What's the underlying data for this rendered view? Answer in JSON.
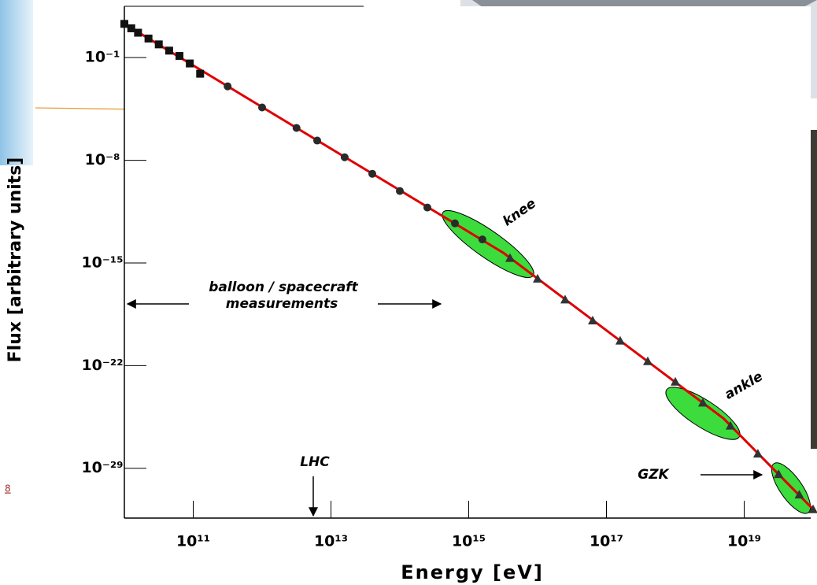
{
  "chart_data": {
    "type": "line",
    "xlabel": "Energy  [eV]",
    "ylabel": "Flux  [arbitrary units]",
    "xscale": "log",
    "yscale": "log",
    "xlim": [
      10000000000.0,
      1e+20
    ],
    "ylim": [
      316,
      4e-33
    ],
    "xticks": [
      {
        "value": 100000000000.0,
        "label": "10¹¹"
      },
      {
        "value": 10000000000000.0,
        "label": "10¹³"
      },
      {
        "value": 1000000000000000.0,
        "label": "10¹⁵"
      },
      {
        "value": 1e+17,
        "label": "10¹⁷"
      },
      {
        "value": 1e+19,
        "label": "10¹⁹"
      }
    ],
    "yticks": [
      {
        "value": 0.1,
        "label": "10⁻¹"
      },
      {
        "value": 1e-08,
        "label": "10⁻⁸"
      },
      {
        "value": 1e-15,
        "label": "10⁻¹⁵"
      },
      {
        "value": 1e-22,
        "label": "10⁻²²"
      },
      {
        "value": 1e-29,
        "label": "10⁻²⁹"
      }
    ],
    "series": [
      {
        "color": "#e00000",
        "marker": "none",
        "x": [
          10000000000.0,
          3160000000000000.0,
          5e+18,
          1e+20
        ],
        "values": [
          20,
          5e-15,
          2.5e-26,
          1.6e-32
        ]
      },
      {
        "color": "#111111",
        "marker": "square",
        "x": [
          10000000000.0,
          12600000000.0,
          15800000000.0,
          22400000000.0,
          31600000000.0,
          44700000000.0,
          63100000000.0,
          89100000000.0,
          126000000000.0
        ],
        "values": [
          20,
          10,
          5,
          2,
          0.8,
          0.3,
          0.13,
          0.04,
          0.008
        ]
      },
      {
        "color": "#2a2a2a",
        "marker": "circle",
        "x": [
          316000000000.0,
          1000000000000.0,
          3160000000000.0,
          6310000000000.0,
          15800000000000.0,
          39800000000000.0,
          100000000000000.0,
          251000000000000.0,
          631000000000000.0,
          1580000000000000.0
        ],
        "values": [
          0.0011,
          4e-05,
          1.6e-06,
          2.2e-07,
          1.6e-08,
          1.2e-09,
          8e-11,
          6e-12,
          5e-13,
          4e-14
        ]
      },
      {
        "color": "#333333",
        "marker": "triangle",
        "x": [
          3980000000000000.0,
          1e+16,
          2.51e+16,
          6.31e+16,
          1.58e+17,
          3.98e+17,
          1e+18,
          2.51e+18,
          6.31e+18,
          1.58e+19,
          3.16e+19,
          6.31e+19,
          1e+20
        ],
        "values": [
          2.2e-15,
          8.5e-17,
          3.2e-18,
          1.2e-19,
          5e-21,
          2e-22,
          8e-24,
          3e-25,
          8e-27,
          1e-28,
          4e-30,
          1.6e-31,
          1.6e-32
        ]
      }
    ],
    "annotations": [
      "knee",
      "ankle",
      "GZK",
      "LHC",
      "balloon / spacecraft",
      "measurements"
    ]
  },
  "slide": {
    "fragment_text": "8"
  }
}
